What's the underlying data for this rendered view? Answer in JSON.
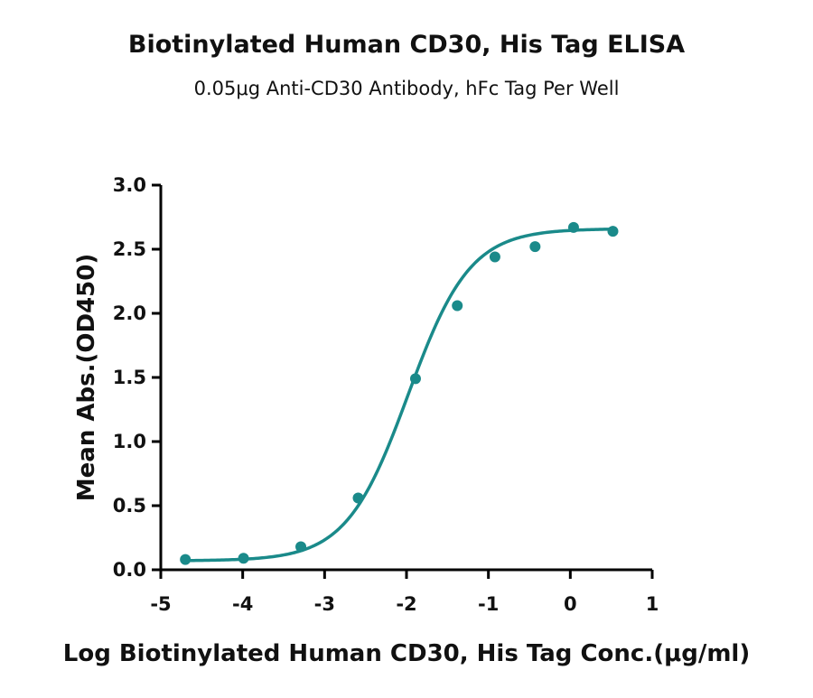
{
  "chart_data": {
    "type": "scatter",
    "title": "Biotinylated Human CD30, His Tag ELISA",
    "subtitle": "0.05μg Anti-CD30 Antibody, hFc Tag Per Well",
    "xlabel": "Log Biotinylated Human CD30, His Tag Conc.(μg/ml)",
    "ylabel": "Mean Abs.(OD450)",
    "xlim": [
      -5,
      1
    ],
    "ylim": [
      0,
      3
    ],
    "x_ticks": [
      "-5",
      "-4",
      "-3",
      "-2",
      "-1",
      "0",
      "1"
    ],
    "y_ticks": [
      "0.0",
      "0.5",
      "1.0",
      "1.5",
      "2.0",
      "2.5",
      "3.0"
    ],
    "grid": false,
    "color": "#1a8a8a",
    "series": [
      {
        "x": [
          -4.7,
          -3.99,
          -3.29,
          -2.59,
          -1.89,
          -1.38,
          -0.92,
          -0.43,
          0.04,
          0.52
        ],
        "y": [
          0.08,
          0.09,
          0.18,
          0.56,
          1.49,
          2.06,
          2.44,
          2.52,
          2.67,
          2.64
        ]
      }
    ],
    "fit": {
      "model": "4PL",
      "bottom": 0.07,
      "top": 2.66,
      "logEC50": -1.98,
      "hill": 1.15
    }
  }
}
